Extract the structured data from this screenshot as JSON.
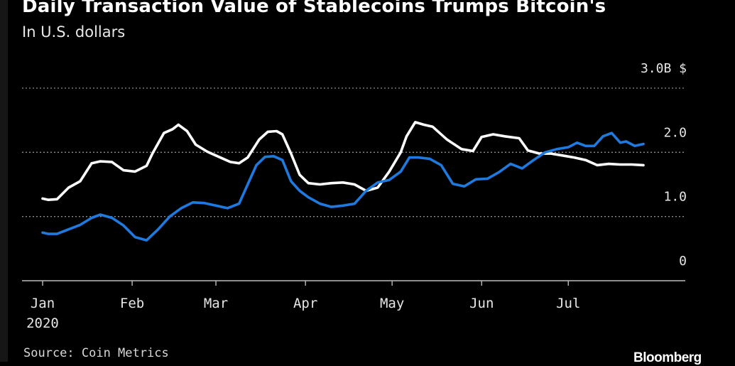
{
  "header": {
    "title": "Daily Transaction Value of Stablecoins Trumps Bitcoin's",
    "subtitle": "In U.S. dollars"
  },
  "footer": {
    "source": "Source: Coin Metrics",
    "brand": "Bloomberg"
  },
  "colors": {
    "background": "#000000",
    "bitcoin_line": "#ffffff",
    "stablecoins_line": "#1f7ae0",
    "grid": "#8c8c8c"
  },
  "chart_data": {
    "type": "line",
    "title": "Daily Transaction Value of Stablecoins Trumps Bitcoin's",
    "subtitle": "In U.S. dollars",
    "xlabel": "",
    "ylabel": "",
    "x_unit": "days since Jan 1, 2020",
    "xlim": [
      0,
      213
    ],
    "ylim": [
      0,
      3.0
    ],
    "y_axis_side": "right",
    "grid": "horizontal dotted",
    "x_ticks": [
      {
        "label": "Jan",
        "sub": "2020",
        "x": 0
      },
      {
        "label": "Feb",
        "x": 31
      },
      {
        "label": "Mar",
        "x": 60
      },
      {
        "label": "Apr",
        "x": 91
      },
      {
        "label": "May",
        "x": 121
      },
      {
        "label": "Jun",
        "x": 152
      },
      {
        "label": "Jul",
        "x": 182
      }
    ],
    "y_ticks": [
      {
        "label": "0",
        "y": 0
      },
      {
        "label": "1.0",
        "y": 1.0
      },
      {
        "label": "2.0",
        "y": 2.0
      },
      {
        "label": "3.0B $",
        "y": 3.0
      }
    ],
    "series": [
      {
        "color": "#ffffff",
        "x": [
          0,
          2,
          5,
          9,
          13,
          17,
          20,
          24,
          28,
          32,
          36,
          38,
          42,
          45,
          47,
          50,
          53,
          57,
          61,
          65,
          68,
          71,
          75,
          78,
          81,
          83,
          86,
          89,
          92,
          96,
          100,
          104,
          108,
          112,
          116,
          120,
          124,
          126,
          129,
          132,
          135,
          140,
          145,
          149,
          152,
          156,
          160,
          165,
          168,
          172,
          176,
          180,
          184,
          188,
          192,
          196,
          200,
          204,
          208
        ],
        "y": [
          1.28,
          1.26,
          1.27,
          1.45,
          1.55,
          1.83,
          1.86,
          1.85,
          1.72,
          1.7,
          1.79,
          1.98,
          2.3,
          2.36,
          2.43,
          2.33,
          2.12,
          2.01,
          1.93,
          1.85,
          1.83,
          1.92,
          2.2,
          2.32,
          2.33,
          2.28,
          1.98,
          1.65,
          1.52,
          1.5,
          1.52,
          1.53,
          1.5,
          1.4,
          1.45,
          1.7,
          2.0,
          2.25,
          2.47,
          2.43,
          2.4,
          2.2,
          2.05,
          2.02,
          2.24,
          2.28,
          2.25,
          2.22,
          2.03,
          1.98,
          1.98,
          1.95,
          1.92,
          1.88,
          1.8,
          1.82,
          1.81,
          1.81,
          1.8
        ]
      },
      {
        "color": "#1f7ae0",
        "x": [
          0,
          2,
          5,
          9,
          13,
          17,
          20,
          24,
          28,
          32,
          36,
          40,
          44,
          48,
          52,
          56,
          60,
          64,
          68,
          71,
          74,
          77,
          80,
          83,
          86,
          89,
          92,
          96,
          100,
          104,
          108,
          112,
          116,
          120,
          124,
          127,
          130,
          134,
          138,
          142,
          146,
          150,
          154,
          158,
          162,
          166,
          170,
          174,
          178,
          182,
          185,
          188,
          191,
          194,
          197,
          200,
          202,
          205,
          208
        ],
        "y": [
          0.75,
          0.73,
          0.73,
          0.8,
          0.87,
          0.98,
          1.03,
          0.98,
          0.86,
          0.68,
          0.63,
          0.8,
          1.0,
          1.13,
          1.22,
          1.21,
          1.17,
          1.13,
          1.2,
          1.5,
          1.8,
          1.93,
          1.94,
          1.88,
          1.55,
          1.4,
          1.3,
          1.2,
          1.15,
          1.17,
          1.2,
          1.4,
          1.53,
          1.57,
          1.7,
          1.92,
          1.92,
          1.9,
          1.8,
          1.51,
          1.47,
          1.58,
          1.59,
          1.69,
          1.82,
          1.75,
          1.88,
          2.0,
          2.05,
          2.08,
          2.15,
          2.1,
          2.1,
          2.25,
          2.3,
          2.15,
          2.17,
          2.1,
          2.13
        ]
      }
    ]
  }
}
